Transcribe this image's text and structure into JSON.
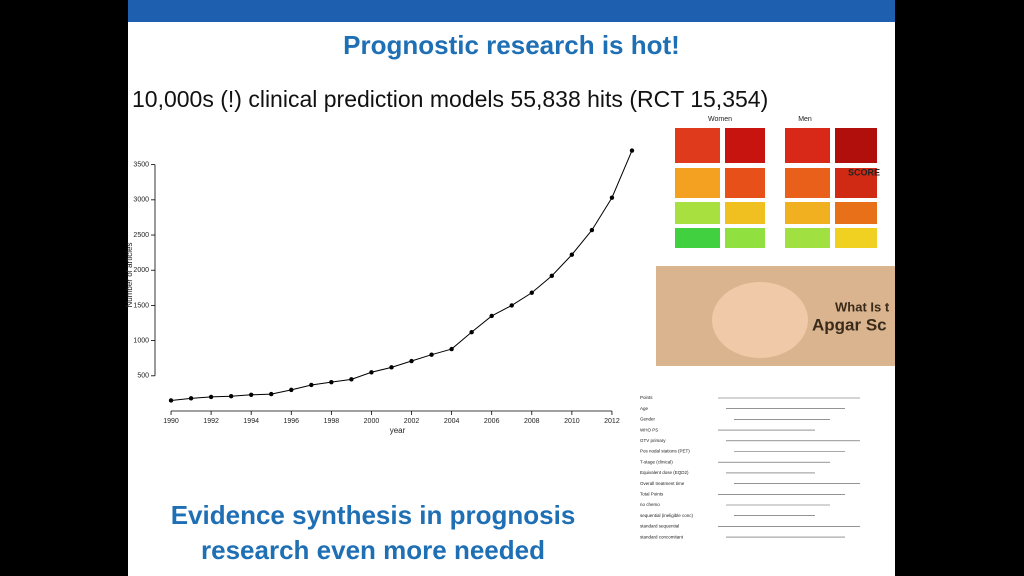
{
  "slide": {
    "title": "Prognostic research is hot!",
    "subtitle": "10,000s (!) clinical prediction models 55,838 hits (RCT 15,354)",
    "footer": [
      "Evidence synthesis in prognosis",
      "research even more needed"
    ],
    "score_chart": {
      "labels": [
        "Women",
        "Men",
        "SCORE"
      ]
    },
    "photo": {
      "labels": [
        "What Is t",
        "Apgar Sc"
      ]
    },
    "nomogram": {
      "rows": [
        "Points",
        "Age",
        "Gender",
        "WHO PS",
        "GTV primary",
        "Pos nodal stations (PET)",
        "T-stage (clinical)",
        "Equivalent dose (EQD2)",
        "Overall treatment time",
        "Total Points",
        "no chemo",
        "sequential (ineligible conc)",
        "standard sequential",
        "standard concomitant"
      ]
    }
  },
  "chart_data": {
    "type": "line",
    "x_label": "year",
    "y_label": "Number of articles",
    "x": [
      1990,
      1991,
      1992,
      1993,
      1994,
      1995,
      1996,
      1997,
      1998,
      1999,
      2000,
      2001,
      2002,
      2003,
      2004,
      2005,
      2006,
      2007,
      2008,
      2009,
      2010,
      2011,
      2012,
      2013
    ],
    "values": [
      150,
      180,
      200,
      210,
      230,
      240,
      300,
      370,
      410,
      450,
      550,
      620,
      710,
      800,
      880,
      1120,
      1350,
      1500,
      1680,
      1920,
      2220,
      2570,
      3030,
      3700
    ],
    "color": "#000000",
    "xlim": [
      1989.2,
      2013.4
    ],
    "ylim": [
      0,
      3850
    ],
    "xticks": [
      1990,
      1992,
      1994,
      1996,
      1998,
      2000,
      2002,
      2004,
      2006,
      2008,
      2010,
      2012
    ],
    "yticks": [
      500,
      1000,
      1500,
      2000,
      2500,
      3000,
      3500
    ]
  }
}
